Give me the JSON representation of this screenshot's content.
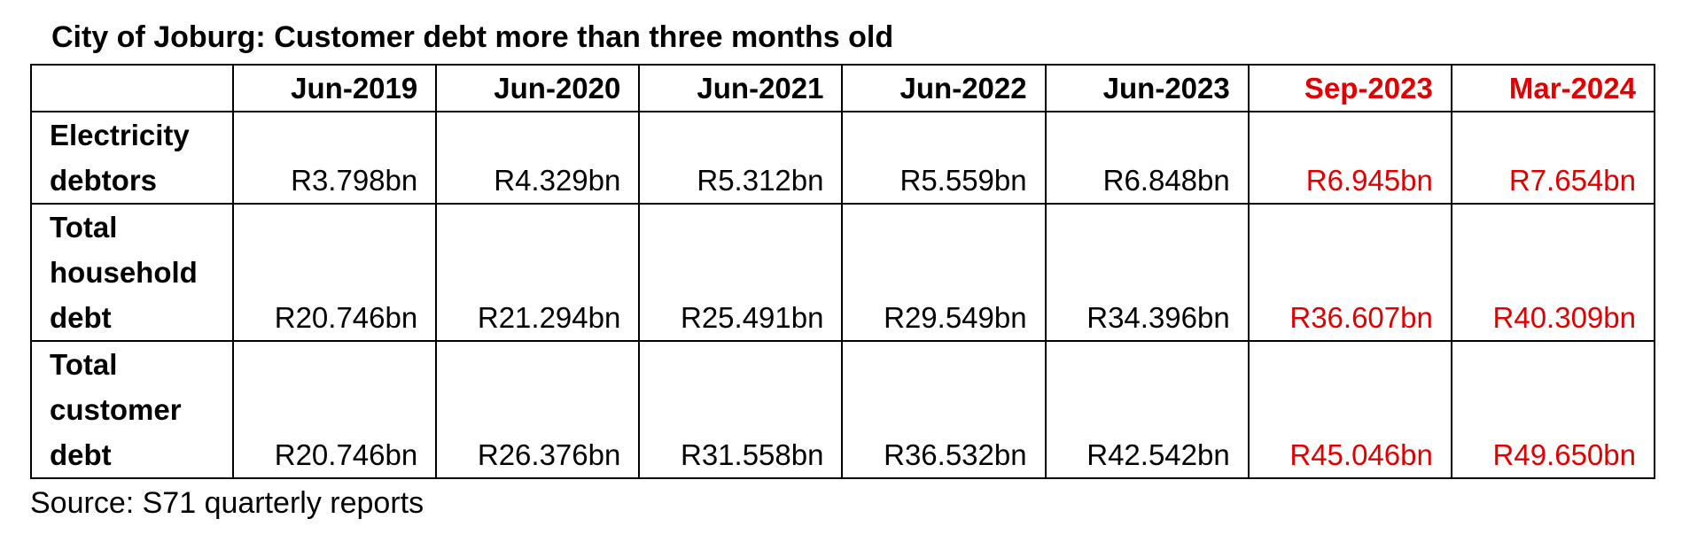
{
  "title": "City of Joburg: Customer debt more than three months old",
  "table": {
    "columns": [
      {
        "label": "Jun-2019",
        "highlight": false
      },
      {
        "label": "Jun-2020",
        "highlight": false
      },
      {
        "label": "Jun-2021",
        "highlight": false
      },
      {
        "label": "Jun-2022",
        "highlight": false
      },
      {
        "label": "Jun-2023",
        "highlight": false
      },
      {
        "label": "Sep-2023",
        "highlight": true
      },
      {
        "label": "Mar-2024",
        "highlight": true
      }
    ],
    "rows": [
      {
        "label_lines": [
          "Electricity",
          "debtors"
        ],
        "values": [
          "R3.798bn",
          "R4.329bn",
          "R5.312bn",
          "R5.559bn",
          "R6.848bn",
          "R6.945bn",
          "R7.654bn"
        ]
      },
      {
        "label_lines": [
          "Total",
          "household",
          "debt"
        ],
        "values": [
          "R20.746bn",
          "R21.294bn",
          "R25.491bn",
          "R29.549bn",
          "R34.396bn",
          "R36.607bn",
          "R40.309bn"
        ]
      },
      {
        "label_lines": [
          "Total",
          "customer",
          "debt"
        ],
        "values": [
          "R20.746bn",
          "R26.376bn",
          "R31.558bn",
          "R36.532bn",
          "R42.542bn",
          "R45.046bn",
          "R49.650bn"
        ]
      }
    ]
  },
  "source": "Source: S71 quarterly reports",
  "colors": {
    "highlight": "#e00000",
    "text": "#000000",
    "border": "#000000"
  }
}
